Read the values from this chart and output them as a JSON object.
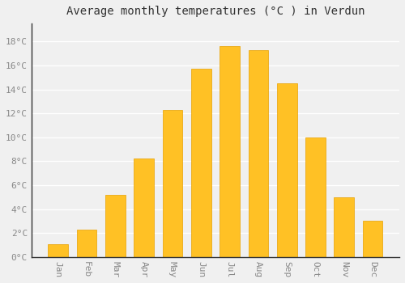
{
  "title": "Average monthly temperatures (°C ) in Verdun",
  "months": [
    "Jan",
    "Feb",
    "Mar",
    "Apr",
    "May",
    "Jun",
    "Jul",
    "Aug",
    "Sep",
    "Oct",
    "Nov",
    "Dec"
  ],
  "values": [
    1.1,
    2.3,
    5.2,
    8.2,
    12.3,
    15.7,
    17.6,
    17.3,
    14.5,
    10.0,
    5.0,
    3.0
  ],
  "bar_color": "#FFC125",
  "bar_edge_color": "#E8A000",
  "background_color": "#F0F0F0",
  "grid_color": "#FFFFFF",
  "yticks": [
    0,
    2,
    4,
    6,
    8,
    10,
    12,
    14,
    16,
    18
  ],
  "ylim": [
    0,
    19.5
  ],
  "title_fontsize": 10,
  "tick_fontsize": 8,
  "tick_color": "#888888",
  "label_rotation": 270
}
